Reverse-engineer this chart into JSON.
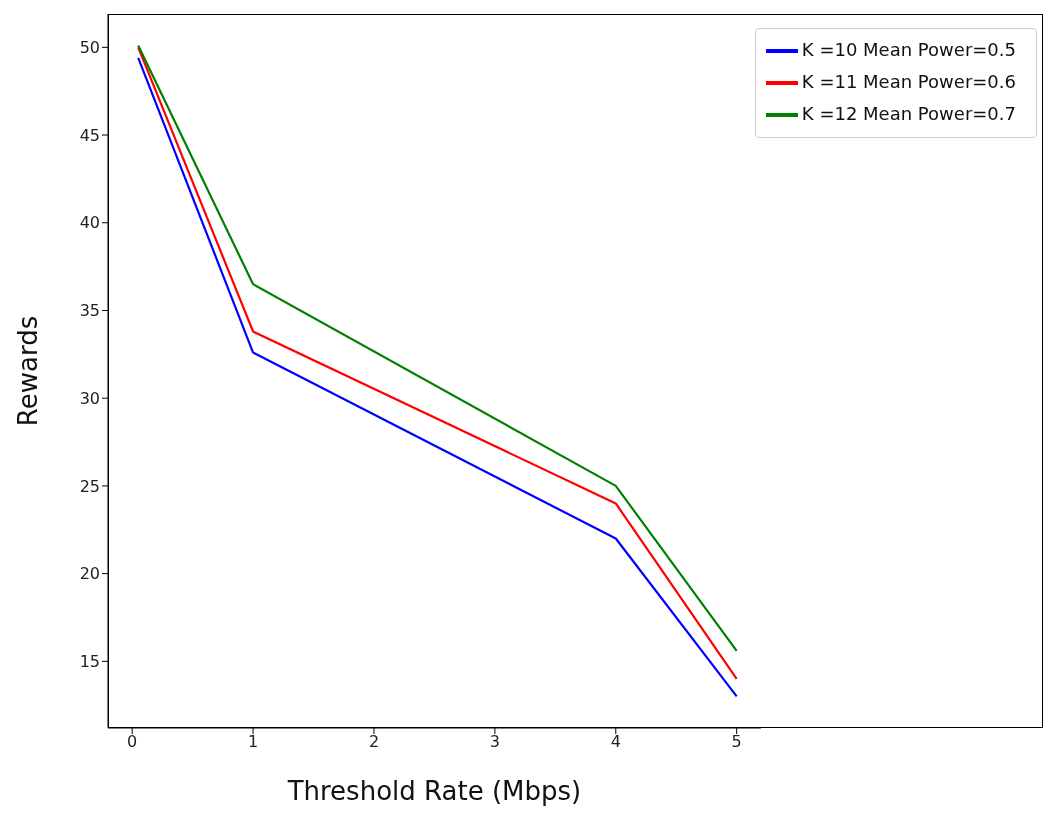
{
  "chart_data": {
    "type": "line",
    "xlabel": "Threshold Rate (Mbps)",
    "ylabel": "Rewards",
    "x": [
      0.05,
      1,
      4,
      5
    ],
    "series": [
      {
        "name": "K =10 Mean Power=0.5",
        "color": "#0000ff",
        "values": [
          49.4,
          32.6,
          22,
          13
        ]
      },
      {
        "name": "K =11 Mean Power=0.6",
        "color": "#ff0000",
        "values": [
          50,
          33.8,
          24,
          14
        ]
      },
      {
        "name": "K =12 Mean Power=0.7",
        "color": "#008000",
        "values": [
          50.1,
          36.5,
          25,
          15.6
        ]
      }
    ],
    "xlim": [
      -0.2,
      5.2
    ],
    "xticks": [
      0,
      1,
      2,
      3,
      4,
      5
    ],
    "ylim": [
      11.2,
      51.9
    ],
    "yticks": [
      15,
      20,
      25,
      30,
      35,
      40,
      45,
      50
    ],
    "grid": false,
    "legend": "top right",
    "marker": "none",
    "line_style": "solid"
  }
}
